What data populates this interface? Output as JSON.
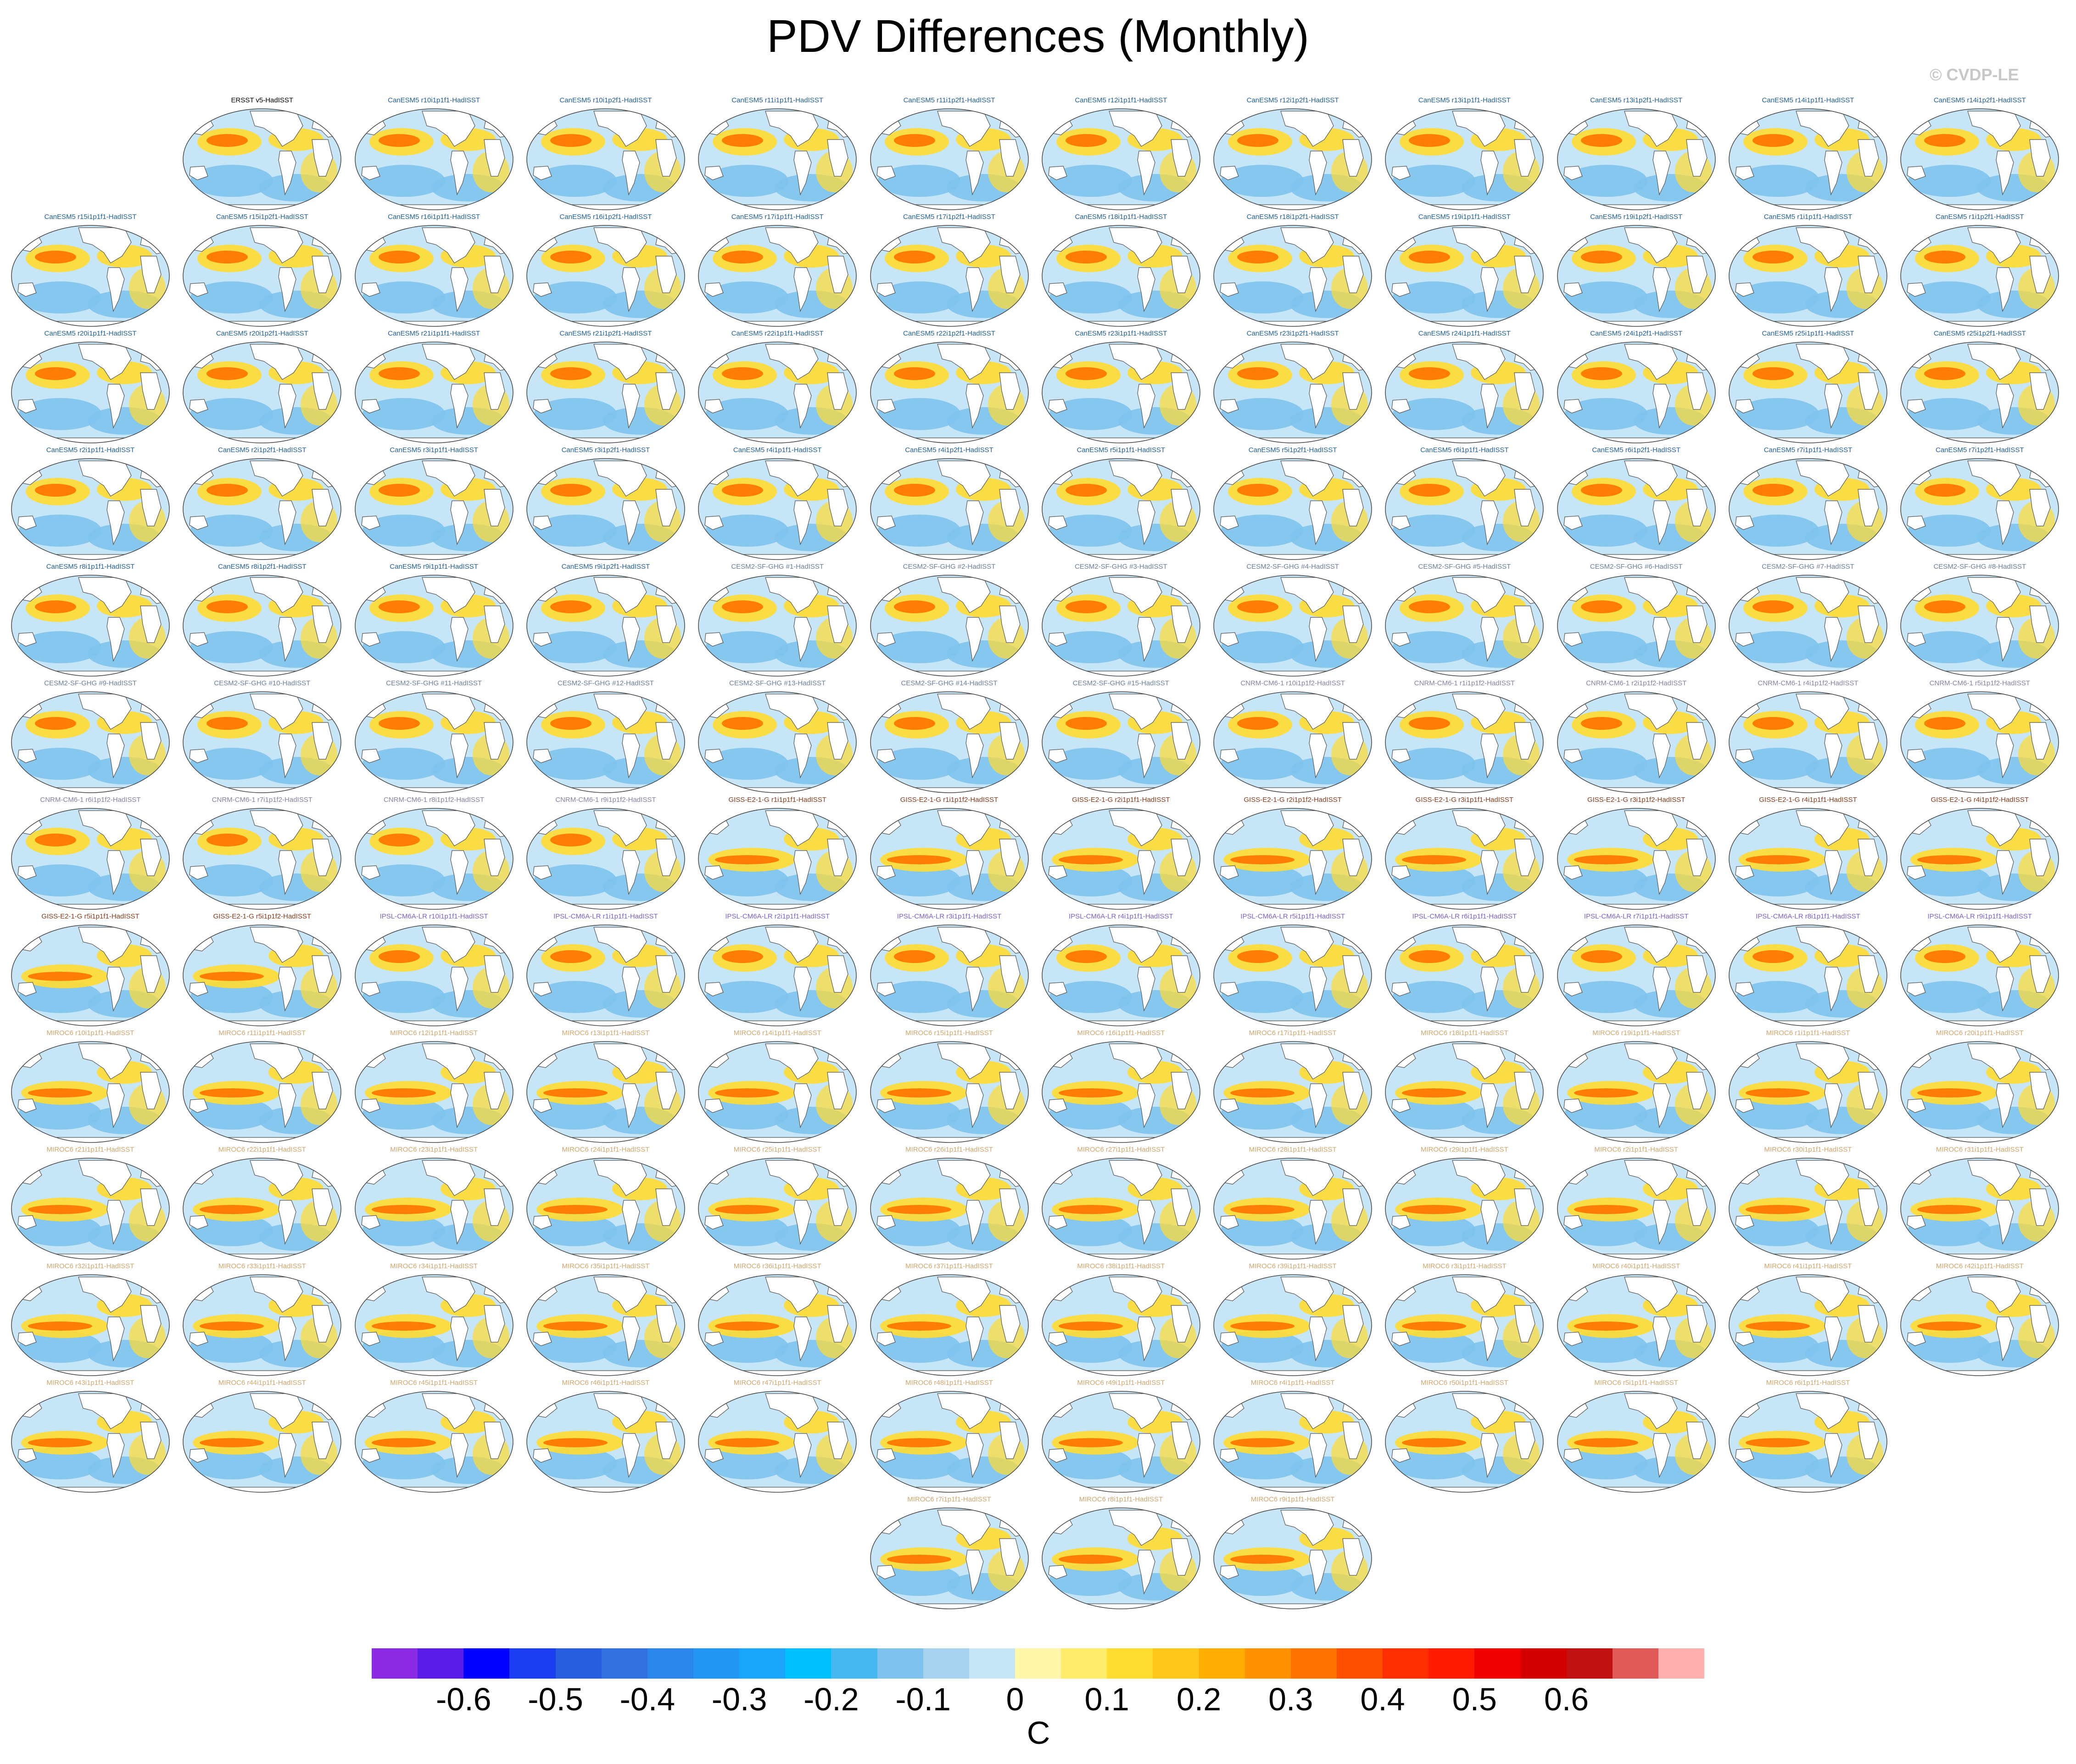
{
  "page": {
    "title": "PDV Differences (Monthly)",
    "credit": "© CVDP-LE"
  },
  "chart_data": {
    "type": "heatmap",
    "title": "PDV Differences (Monthly)",
    "projection": "global map panels",
    "colorbar": {
      "units": "C",
      "tick_labels": [
        "-0.6",
        "-0.5",
        "-0.4",
        "-0.3",
        "-0.2",
        "-0.1",
        "0",
        "0.1",
        "0.2",
        "0.3",
        "0.4",
        "0.5",
        "0.6"
      ],
      "colors": [
        "#8a2be2",
        "#5a1de8",
        "#0000ff",
        "#1a3ef0",
        "#2a5ee0",
        "#3570e0",
        "#2a86ea",
        "#2196f3",
        "#1aa6f8",
        "#00bfff",
        "#45b8f0",
        "#7ec3ee",
        "#a8d4f0",
        "#c6e5f6",
        "#fff6a8",
        "#ffec6c",
        "#ffdc32",
        "#ffc61a",
        "#ffad00",
        "#ff9000",
        "#ff7200",
        "#ff5000",
        "#ff2e00",
        "#ff1a00",
        "#ee0000",
        "#d40000",
        "#c01010",
        "#e05a5a",
        "#ffb0b0"
      ]
    },
    "panels": [
      {
        "label": "ERSST v5-HadISST",
        "group": "obs"
      },
      {
        "label": "CanESM5 r10i1p1f1-HadISST",
        "group": "CanESM5"
      },
      {
        "label": "CanESM5 r10i1p2f1-HadISST",
        "group": "CanESM5"
      },
      {
        "label": "CanESM5 r11i1p1f1-HadISST",
        "group": "CanESM5"
      },
      {
        "label": "CanESM5 r11i1p2f1-HadISST",
        "group": "CanESM5"
      },
      {
        "label": "CanESM5 r12i1p1f1-HadISST",
        "group": "CanESM5"
      },
      {
        "label": "CanESM5 r12i1p2f1-HadISST",
        "group": "CanESM5"
      },
      {
        "label": "CanESM5 r13i1p1f1-HadISST",
        "group": "CanESM5"
      },
      {
        "label": "CanESM5 r13i1p2f1-HadISST",
        "group": "CanESM5"
      },
      {
        "label": "CanESM5 r14i1p1f1-HadISST",
        "group": "CanESM5"
      },
      {
        "label": "CanESM5 r14i1p2f1-HadISST",
        "group": "CanESM5"
      },
      {
        "label": "CanESM5 r15i1p1f1-HadISST",
        "group": "CanESM5"
      },
      {
        "label": "CanESM5 r15i1p2f1-HadISST",
        "group": "CanESM5"
      },
      {
        "label": "CanESM5 r16i1p1f1-HadISST",
        "group": "CanESM5"
      },
      {
        "label": "CanESM5 r16i1p2f1-HadISST",
        "group": "CanESM5"
      },
      {
        "label": "CanESM5 r17i1p1f1-HadISST",
        "group": "CanESM5"
      },
      {
        "label": "CanESM5 r17i1p2f1-HadISST",
        "group": "CanESM5"
      },
      {
        "label": "CanESM5 r18i1p1f1-HadISST",
        "group": "CanESM5"
      },
      {
        "label": "CanESM5 r18i1p2f1-HadISST",
        "group": "CanESM5"
      },
      {
        "label": "CanESM5 r19i1p1f1-HadISST",
        "group": "CanESM5"
      },
      {
        "label": "CanESM5 r19i1p2f1-HadISST",
        "group": "CanESM5"
      },
      {
        "label": "CanESM5 r1i1p1f1-HadISST",
        "group": "CanESM5"
      },
      {
        "label": "CanESM5 r1i1p2f1-HadISST",
        "group": "CanESM5"
      },
      {
        "label": "CanESM5 r20i1p1f1-HadISST",
        "group": "CanESM5"
      },
      {
        "label": "CanESM5 r20i1p2f1-HadISST",
        "group": "CanESM5"
      },
      {
        "label": "CanESM5 r21i1p1f1-HadISST",
        "group": "CanESM5"
      },
      {
        "label": "CanESM5 r21i1p2f1-HadISST",
        "group": "CanESM5"
      },
      {
        "label": "CanESM5 r22i1p1f1-HadISST",
        "group": "CanESM5"
      },
      {
        "label": "CanESM5 r22i1p2f1-HadISST",
        "group": "CanESM5"
      },
      {
        "label": "CanESM5 r23i1p1f1-HadISST",
        "group": "CanESM5"
      },
      {
        "label": "CanESM5 r23i1p2f1-HadISST",
        "group": "CanESM5"
      },
      {
        "label": "CanESM5 r24i1p1f1-HadISST",
        "group": "CanESM5"
      },
      {
        "label": "CanESM5 r24i1p2f1-HadISST",
        "group": "CanESM5"
      },
      {
        "label": "CanESM5 r25i1p1f1-HadISST",
        "group": "CanESM5"
      },
      {
        "label": "CanESM5 r25i1p2f1-HadISST",
        "group": "CanESM5"
      },
      {
        "label": "CanESM5 r2i1p1f1-HadISST",
        "group": "CanESM5"
      },
      {
        "label": "CanESM5 r2i1p2f1-HadISST",
        "group": "CanESM5"
      },
      {
        "label": "CanESM5 r3i1p1f1-HadISST",
        "group": "CanESM5"
      },
      {
        "label": "CanESM5 r3i1p2f1-HadISST",
        "group": "CanESM5"
      },
      {
        "label": "CanESM5 r4i1p1f1-HadISST",
        "group": "CanESM5"
      },
      {
        "label": "CanESM5 r4i1p2f1-HadISST",
        "group": "CanESM5"
      },
      {
        "label": "CanESM5 r5i1p1f1-HadISST",
        "group": "CanESM5"
      },
      {
        "label": "CanESM5 r5i1p2f1-HadISST",
        "group": "CanESM5"
      },
      {
        "label": "CanESM5 r6i1p1f1-HadISST",
        "group": "CanESM5"
      },
      {
        "label": "CanESM5 r6i1p2f1-HadISST",
        "group": "CanESM5"
      },
      {
        "label": "CanESM5 r7i1p1f1-HadISST",
        "group": "CanESM5"
      },
      {
        "label": "CanESM5 r7i1p2f1-HadISST",
        "group": "CanESM5"
      },
      {
        "label": "CanESM5 r8i1p1f1-HadISST",
        "group": "CanESM5"
      },
      {
        "label": "CanESM5 r8i1p2f1-HadISST",
        "group": "CanESM5"
      },
      {
        "label": "CanESM5 r9i1p1f1-HadISST",
        "group": "CanESM5"
      },
      {
        "label": "CanESM5 r9i1p2f1-HadISST",
        "group": "CanESM5"
      },
      {
        "label": "CESM2-SF-GHG #1-HadISST",
        "group": "CESM2"
      },
      {
        "label": "CESM2-SF-GHG #2-HadISST",
        "group": "CESM2"
      },
      {
        "label": "CESM2-SF-GHG #3-HadISST",
        "group": "CESM2"
      },
      {
        "label": "CESM2-SF-GHG #4-HadISST",
        "group": "CESM2"
      },
      {
        "label": "CESM2-SF-GHG #5-HadISST",
        "group": "CESM2"
      },
      {
        "label": "CESM2-SF-GHG #6-HadISST",
        "group": "CESM2"
      },
      {
        "label": "CESM2-SF-GHG #7-HadISST",
        "group": "CESM2"
      },
      {
        "label": "CESM2-SF-GHG #8-HadISST",
        "group": "CESM2"
      },
      {
        "label": "CESM2-SF-GHG #9-HadISST",
        "group": "CESM2"
      },
      {
        "label": "CESM2-SF-GHG #10-HadISST",
        "group": "CESM2"
      },
      {
        "label": "CESM2-SF-GHG #11-HadISST",
        "group": "CESM2"
      },
      {
        "label": "CESM2-SF-GHG #12-HadISST",
        "group": "CESM2"
      },
      {
        "label": "CESM2-SF-GHG #13-HadISST",
        "group": "CESM2"
      },
      {
        "label": "CESM2-SF-GHG #14-HadISST",
        "group": "CESM2"
      },
      {
        "label": "CESM2-SF-GHG #15-HadISST",
        "group": "CESM2"
      },
      {
        "label": "CNRM-CM6-1 r10i1p1f2-HadISST",
        "group": "CNRM"
      },
      {
        "label": "CNRM-CM6-1 r1i1p1f2-HadISST",
        "group": "CNRM"
      },
      {
        "label": "CNRM-CM6-1 r2i1p1f2-HadISST",
        "group": "CNRM"
      },
      {
        "label": "CNRM-CM6-1 r4i1p1f2-HadISST",
        "group": "CNRM"
      },
      {
        "label": "CNRM-CM6-1 r5i1p1f2-HadISST",
        "group": "CNRM"
      },
      {
        "label": "CNRM-CM6-1 r6i1p1f2-HadISST",
        "group": "CNRM"
      },
      {
        "label": "CNRM-CM6-1 r7i1p1f2-HadISST",
        "group": "CNRM"
      },
      {
        "label": "CNRM-CM6-1 r8i1p1f2-HadISST",
        "group": "CNRM"
      },
      {
        "label": "CNRM-CM6-1 r9i1p1f2-HadISST",
        "group": "CNRM"
      },
      {
        "label": "GISS-E2-1-G r1i1p1f1-HadISST",
        "group": "GISS"
      },
      {
        "label": "GISS-E2-1-G r1i1p1f2-HadISST",
        "group": "GISS"
      },
      {
        "label": "GISS-E2-1-G r2i1p1f1-HadISST",
        "group": "GISS"
      },
      {
        "label": "GISS-E2-1-G r2i1p1f2-HadISST",
        "group": "GISS"
      },
      {
        "label": "GISS-E2-1-G r3i1p1f1-HadISST",
        "group": "GISS"
      },
      {
        "label": "GISS-E2-1-G r3i1p1f2-HadISST",
        "group": "GISS"
      },
      {
        "label": "GISS-E2-1-G r4i1p1f1-HadISST",
        "group": "GISS"
      },
      {
        "label": "GISS-E2-1-G r4i1p1f2-HadISST",
        "group": "GISS"
      },
      {
        "label": "GISS-E2-1-G r5i1p1f1-HadISST",
        "group": "GISS"
      },
      {
        "label": "GISS-E2-1-G r5i1p1f2-HadISST",
        "group": "GISS"
      },
      {
        "label": "IPSL-CM6A-LR r10i1p1f1-HadISST",
        "group": "IPSL"
      },
      {
        "label": "IPSL-CM6A-LR r1i1p1f1-HadISST",
        "group": "IPSL"
      },
      {
        "label": "IPSL-CM6A-LR r2i1p1f1-HadISST",
        "group": "IPSL"
      },
      {
        "label": "IPSL-CM6A-LR r3i1p1f1-HadISST",
        "group": "IPSL"
      },
      {
        "label": "IPSL-CM6A-LR r4i1p1f1-HadISST",
        "group": "IPSL"
      },
      {
        "label": "IPSL-CM6A-LR r5i1p1f1-HadISST",
        "group": "IPSL"
      },
      {
        "label": "IPSL-CM6A-LR r6i1p1f1-HadISST",
        "group": "IPSL"
      },
      {
        "label": "IPSL-CM6A-LR r7i1p1f1-HadISST",
        "group": "IPSL"
      },
      {
        "label": "IPSL-CM6A-LR r8i1p1f1-HadISST",
        "group": "IPSL"
      },
      {
        "label": "IPSL-CM6A-LR r9i1p1f1-HadISST",
        "group": "IPSL"
      },
      {
        "label": "MIROC6 r10i1p1f1-HadISST",
        "group": "MIROC6"
      },
      {
        "label": "MIROC6 r11i1p1f1-HadISST",
        "group": "MIROC6"
      },
      {
        "label": "MIROC6 r12i1p1f1-HadISST",
        "group": "MIROC6"
      },
      {
        "label": "MIROC6 r13i1p1f1-HadISST",
        "group": "MIROC6"
      },
      {
        "label": "MIROC6 r14i1p1f1-HadISST",
        "group": "MIROC6"
      },
      {
        "label": "MIROC6 r15i1p1f1-HadISST",
        "group": "MIROC6"
      },
      {
        "label": "MIROC6 r16i1p1f1-HadISST",
        "group": "MIROC6"
      },
      {
        "label": "MIROC6 r17i1p1f1-HadISST",
        "group": "MIROC6"
      },
      {
        "label": "MIROC6 r18i1p1f1-HadISST",
        "group": "MIROC6"
      },
      {
        "label": "MIROC6 r19i1p1f1-HadISST",
        "group": "MIROC6"
      },
      {
        "label": "MIROC6 r1i1p1f1-HadISST",
        "group": "MIROC6"
      },
      {
        "label": "MIROC6 r20i1p1f1-HadISST",
        "group": "MIROC6"
      },
      {
        "label": "MIROC6 r21i1p1f1-HadISST",
        "group": "MIROC6"
      },
      {
        "label": "MIROC6 r22i1p1f1-HadISST",
        "group": "MIROC6"
      },
      {
        "label": "MIROC6 r23i1p1f1-HadISST",
        "group": "MIROC6"
      },
      {
        "label": "MIROC6 r24i1p1f1-HadISST",
        "group": "MIROC6"
      },
      {
        "label": "MIROC6 r25i1p1f1-HadISST",
        "group": "MIROC6"
      },
      {
        "label": "MIROC6 r26i1p1f1-HadISST",
        "group": "MIROC6"
      },
      {
        "label": "MIROC6 r27i1p1f1-HadISST",
        "group": "MIROC6"
      },
      {
        "label": "MIROC6 r28i1p1f1-HadISST",
        "group": "MIROC6"
      },
      {
        "label": "MIROC6 r29i1p1f1-HadISST",
        "group": "MIROC6"
      },
      {
        "label": "MIROC6 r2i1p1f1-HadISST",
        "group": "MIROC6"
      },
      {
        "label": "MIROC6 r30i1p1f1-HadISST",
        "group": "MIROC6"
      },
      {
        "label": "MIROC6 r31i1p1f1-HadISST",
        "group": "MIROC6"
      },
      {
        "label": "MIROC6 r32i1p1f1-HadISST",
        "group": "MIROC6"
      },
      {
        "label": "MIROC6 r33i1p1f1-HadISST",
        "group": "MIROC6"
      },
      {
        "label": "MIROC6 r34i1p1f1-HadISST",
        "group": "MIROC6"
      },
      {
        "label": "MIROC6 r35i1p1f1-HadISST",
        "group": "MIROC6"
      },
      {
        "label": "MIROC6 r36i1p1f1-HadISST",
        "group": "MIROC6"
      },
      {
        "label": "MIROC6 r37i1p1f1-HadISST",
        "group": "MIROC6"
      },
      {
        "label": "MIROC6 r38i1p1f1-HadISST",
        "group": "MIROC6"
      },
      {
        "label": "MIROC6 r39i1p1f1-HadISST",
        "group": "MIROC6"
      },
      {
        "label": "MIROC6 r3i1p1f1-HadISST",
        "group": "MIROC6"
      },
      {
        "label": "MIROC6 r40i1p1f1-HadISST",
        "group": "MIROC6"
      },
      {
        "label": "MIROC6 r41i1p1f1-HadISST",
        "group": "MIROC6"
      },
      {
        "label": "MIROC6 r42i1p1f1-HadISST",
        "group": "MIROC6"
      },
      {
        "label": "MIROC6 r43i1p1f1-HadISST",
        "group": "MIROC6"
      },
      {
        "label": "MIROC6 r44i1p1f1-HadISST",
        "group": "MIROC6"
      },
      {
        "label": "MIROC6 r45i1p1f1-HadISST",
        "group": "MIROC6"
      },
      {
        "label": "MIROC6 r46i1p1f1-HadISST",
        "group": "MIROC6"
      },
      {
        "label": "MIROC6 r47i1p1f1-HadISST",
        "group": "MIROC6"
      },
      {
        "label": "MIROC6 r48i1p1f1-HadISST",
        "group": "MIROC6"
      },
      {
        "label": "MIROC6 r49i1p1f1-HadISST",
        "group": "MIROC6"
      },
      {
        "label": "MIROC6 r4i1p1f1-HadISST",
        "group": "MIROC6"
      },
      {
        "label": "MIROC6 r50i1p1f1-HadISST",
        "group": "MIROC6"
      },
      {
        "label": "MIROC6 r5i1p1f1-HadISST",
        "group": "MIROC6"
      },
      {
        "label": "MIROC6 r6i1p1f1-HadISST",
        "group": "MIROC6"
      },
      {
        "label": "MIROC6 r7i1p1f1-HadISST",
        "group": "MIROC6"
      },
      {
        "label": "MIROC6 r8i1p1f1-HadISST",
        "group": "MIROC6"
      },
      {
        "label": "MIROC6 r9i1p1f1-HadISST",
        "group": "MIROC6"
      }
    ]
  },
  "group_colors": {
    "obs": "#000000",
    "CanESM5": "#1f5f9f",
    "CESM2": "#6a7fa0",
    "CNRM": "#8a7fa8",
    "GISS": "#8b3a1a",
    "IPSL": "#7a5fd0",
    "MIROC6": "#d4a56c"
  },
  "map_colors": {
    "neutral": "#c6e5f6",
    "cool": "#7ec3ee",
    "warm": "#ffdc32",
    "hot": "#ff7200",
    "land": "#ffffff",
    "coast": "#555555"
  }
}
